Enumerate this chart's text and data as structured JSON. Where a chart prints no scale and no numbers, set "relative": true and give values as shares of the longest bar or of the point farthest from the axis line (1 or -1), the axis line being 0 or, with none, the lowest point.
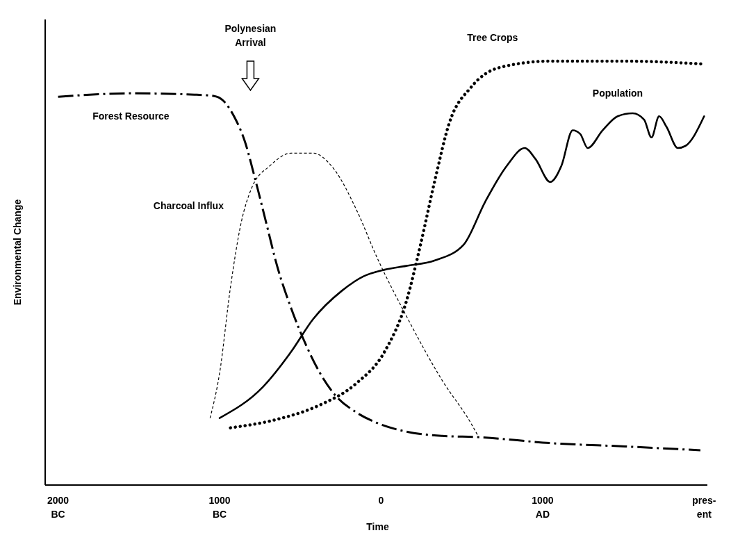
{
  "chart_data": {
    "type": "line",
    "relative": true,
    "xlabel": "Time",
    "ylabel": "Environmental Change",
    "xlim": [
      -2080,
      2020
    ],
    "xticks": [
      {
        "value": -2000,
        "label": "2000\nBC"
      },
      {
        "value": -1000,
        "label": "1000\nBC"
      },
      0,
      {
        "value": 1000,
        "label": "1000\nAD"
      },
      {
        "value": 2000,
        "label": "pres-\nent"
      }
    ],
    "annotations": [
      "Polynesian\nArrival"
    ],
    "series": [
      {
        "name": "Forest Resource",
        "color": "#000000",
        "line_style": "dashdot",
        "x": [
          -2000,
          -1549,
          -1157,
          -1039,
          -978,
          -911,
          -844,
          -778,
          -711,
          -644,
          -556,
          -467,
          -378,
          -289,
          -156,
          -22,
          156,
          378,
          600,
          1047,
          1512,
          1977
        ],
        "values": [
          0.916,
          0.924,
          0.921,
          0.918,
          0.907,
          0.87,
          0.811,
          0.719,
          0.618,
          0.517,
          0.416,
          0.332,
          0.264,
          0.214,
          0.172,
          0.146,
          0.126,
          0.116,
          0.113,
          0.099,
          0.091,
          0.082
        ]
      },
      {
        "name": "Charcoal Influx",
        "color": "#000000",
        "line_style": "dashed",
        "x": [
          -1059,
          -1000,
          -933,
          -867,
          -800,
          -689,
          -556,
          -422,
          -289,
          -156,
          -22,
          156,
          378,
          556,
          600
        ],
        "values": [
          0.158,
          0.264,
          0.466,
          0.618,
          0.702,
          0.753,
          0.783,
          0.783,
          0.744,
          0.652,
          0.534,
          0.399,
          0.247,
          0.146,
          0.116
        ]
      },
      {
        "name": "Population",
        "color": "#000000",
        "line_style": "solid",
        "x": [
          -1000,
          -733,
          -556,
          -422,
          -244,
          -111,
          22,
          156,
          333,
          511,
          644,
          778,
          889,
          956,
          1047,
          1116,
          1186,
          1233,
          1279,
          1372,
          1465,
          1558,
          1628,
          1674,
          1721,
          1767,
          1837,
          1884,
          2000
        ],
        "values": [
          0.158,
          0.231,
          0.315,
          0.391,
          0.458,
          0.492,
          0.508,
          0.517,
          0.53,
          0.567,
          0.668,
          0.753,
          0.795,
          0.769,
          0.715,
          0.753,
          0.837,
          0.828,
          0.795,
          0.837,
          0.87,
          0.877,
          0.862,
          0.82,
          0.87,
          0.845,
          0.795,
          0.8,
          0.87
        ]
      },
      {
        "name": "Tree Crops",
        "color": "#000000",
        "line_style": "dotted",
        "x": [
          -933,
          -644,
          -378,
          -156,
          22,
          156,
          244,
          333,
          422,
          556,
          733,
          1047,
          1512,
          2000
        ],
        "values": [
          0.135,
          0.155,
          0.189,
          0.239,
          0.315,
          0.433,
          0.567,
          0.719,
          0.854,
          0.938,
          0.985,
          1,
          1,
          0.993
        ]
      }
    ]
  }
}
